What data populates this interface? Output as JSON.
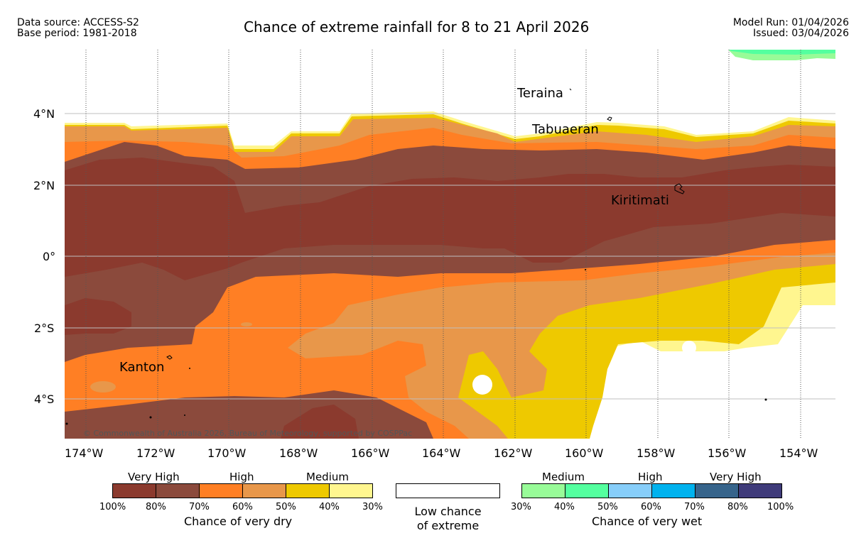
{
  "header": {
    "data_source": "Data source: ACCESS-S2",
    "base_period": "Base period: 1981-2018",
    "title": "Chance of extreme rainfall for 8 to 21 April 2026",
    "model_run": "Model Run: 01/04/2026",
    "issued": "Issued: 03/04/2026"
  },
  "map": {
    "copyright": "© Commonwealth of Australia 2026, Bureau of Meteorology, supported by COSPPac",
    "lon_labels": [
      "174°W",
      "172°W",
      "170°W",
      "168°W",
      "166°W",
      "164°W",
      "162°W",
      "160°W",
      "158°W",
      "156°W",
      "154°W"
    ],
    "lat_labels": [
      "4°N",
      "2°N",
      "0°",
      "2°S",
      "4°S"
    ],
    "places": [
      "Teraina",
      "Tabuaeran",
      "Kiritimati",
      "Kanton"
    ]
  },
  "legend": {
    "dry": {
      "headings": [
        "Very High",
        "High",
        "Medium"
      ],
      "ticks": [
        "100%",
        "80%",
        "70%",
        "60%",
        "50%",
        "40%",
        "30%"
      ],
      "colors": [
        "#8b3a2e",
        "#8b4a3c",
        "#ff7f24",
        "#e8974a",
        "#eec900",
        "#fff68f"
      ],
      "caption": "Chance of very dry"
    },
    "low": {
      "line1": "Low chance",
      "line2": "of extreme"
    },
    "wet": {
      "headings": [
        "Medium",
        "High",
        "Very High"
      ],
      "ticks": [
        "30%",
        "40%",
        "50%",
        "60%",
        "70%",
        "80%",
        "100%"
      ],
      "colors": [
        "#98fb98",
        "#54ff9f",
        "#87cefa",
        "#00b2ee",
        "#36648b",
        "#3f3b7a"
      ],
      "caption": "Chance of very wet"
    }
  }
}
